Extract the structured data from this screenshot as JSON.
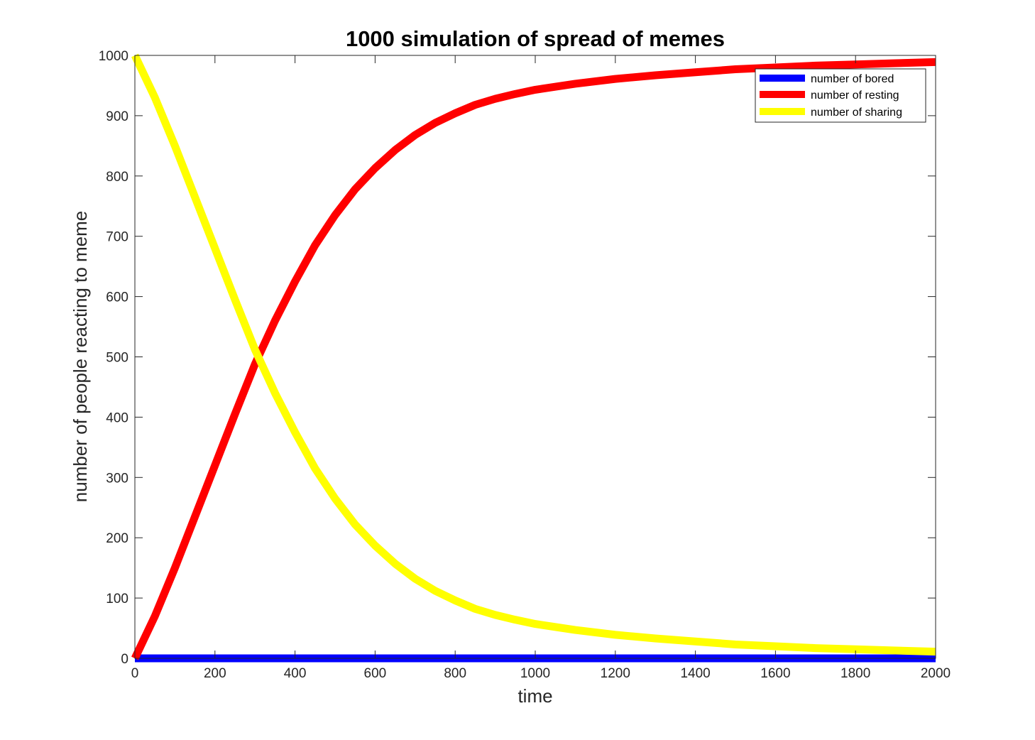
{
  "chart_data": {
    "type": "line",
    "title": "1000 simulation of spread of memes",
    "xlabel": "time",
    "ylabel": "number of people reacting to meme",
    "xlim": [
      0,
      2000
    ],
    "ylim": [
      0,
      1000
    ],
    "xticks": [
      0,
      200,
      400,
      600,
      800,
      1000,
      1200,
      1400,
      1600,
      1800,
      2000
    ],
    "yticks": [
      0,
      100,
      200,
      300,
      400,
      500,
      600,
      700,
      800,
      900,
      1000
    ],
    "grid": false,
    "legend_position": "top-right",
    "series": [
      {
        "name": "number of bored",
        "color": "#0000ff",
        "x": [
          0,
          2000
        ],
        "y": [
          0,
          0
        ]
      },
      {
        "name": "number of resting",
        "color": "#ff0000",
        "x": [
          0,
          50,
          100,
          150,
          200,
          250,
          300,
          350,
          400,
          450,
          500,
          550,
          600,
          650,
          700,
          750,
          800,
          850,
          900,
          950,
          1000,
          1100,
          1200,
          1300,
          1400,
          1500,
          1600,
          1700,
          1800,
          1900,
          2000
        ],
        "y": [
          0,
          70,
          150,
          235,
          320,
          405,
          488,
          560,
          625,
          685,
          735,
          778,
          813,
          843,
          868,
          888,
          904,
          918,
          928,
          936,
          943,
          953,
          961,
          967,
          972,
          977,
          980,
          983,
          985,
          987,
          989
        ]
      },
      {
        "name": "number of sharing",
        "color": "#ffff00",
        "x": [
          0,
          50,
          100,
          150,
          200,
          250,
          300,
          350,
          400,
          450,
          500,
          550,
          600,
          650,
          700,
          750,
          800,
          850,
          900,
          950,
          1000,
          1100,
          1200,
          1300,
          1400,
          1500,
          1600,
          1700,
          1800,
          1900,
          2000
        ],
        "y": [
          1000,
          930,
          850,
          765,
          680,
          595,
          512,
          440,
          375,
          315,
          265,
          222,
          187,
          157,
          132,
          112,
          96,
          82,
          72,
          64,
          57,
          47,
          39,
          33,
          28,
          23,
          20,
          17,
          15,
          13,
          11
        ]
      }
    ]
  }
}
